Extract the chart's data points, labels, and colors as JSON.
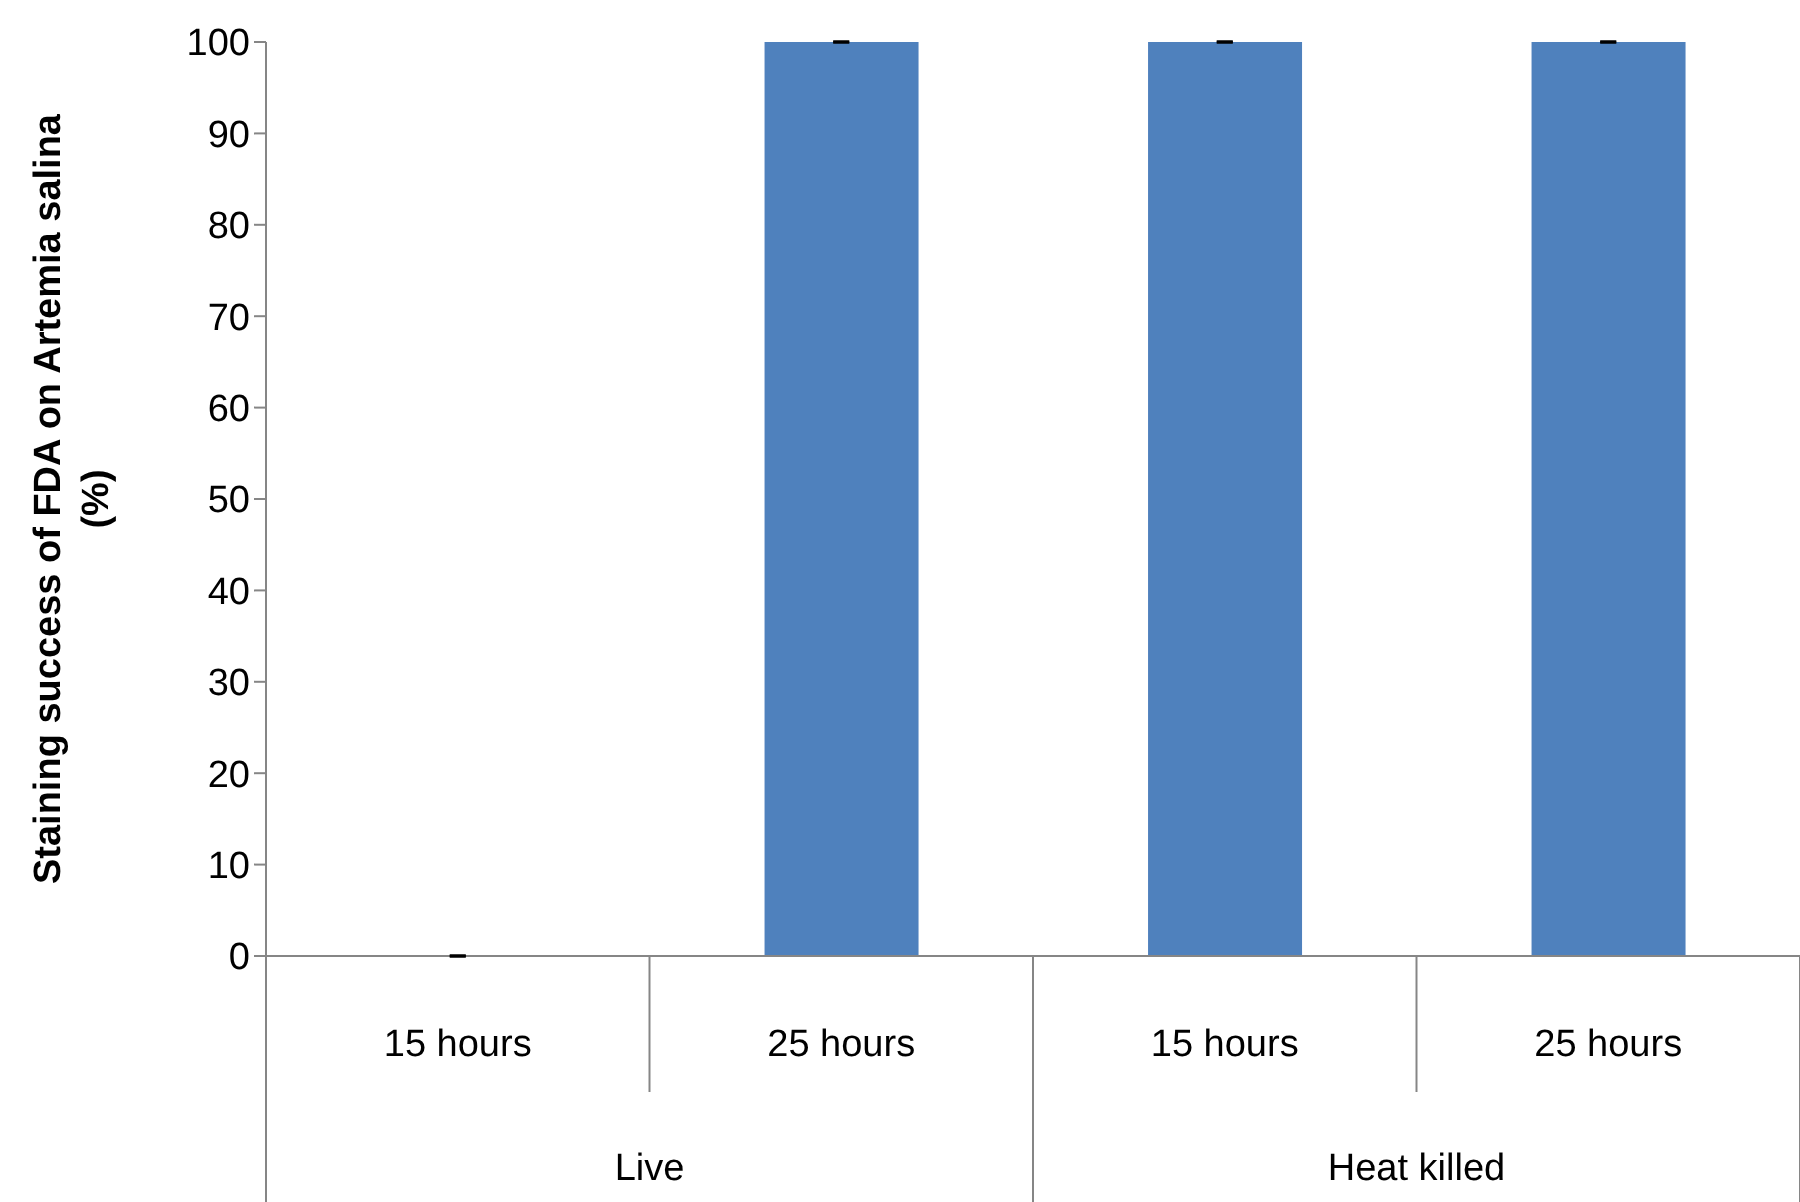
{
  "chart_data": {
    "type": "bar",
    "ylabel": "Staining success of FDA on Artemia salina (%)",
    "categories": [
      "15 hours",
      "25 hours",
      "15 hours",
      "25 hours"
    ],
    "annotations": [
      "Live",
      "Heat killed"
    ],
    "values": [
      0,
      100,
      100,
      100
    ],
    "errors": [
      0,
      0,
      0,
      0
    ],
    "color": "#4f81bd",
    "ylim": [
      0,
      100
    ],
    "yticks": [
      0,
      10,
      20,
      30,
      40,
      50,
      60,
      70,
      80,
      90,
      100
    ],
    "grid": false,
    "legend": false
  }
}
